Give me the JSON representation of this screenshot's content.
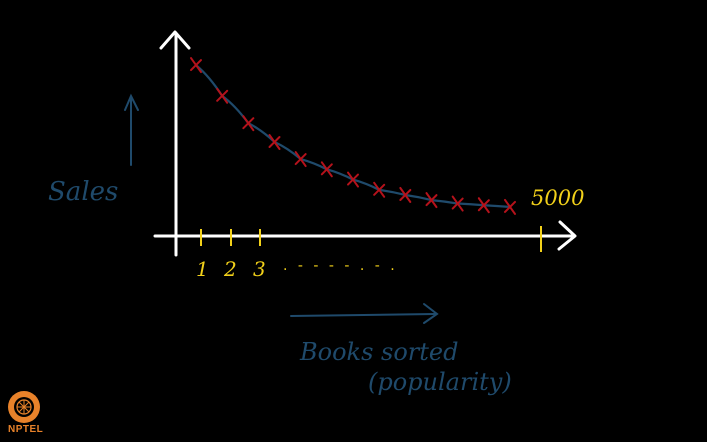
{
  "colors": {
    "background": "#000000",
    "axes": "#ffffff",
    "curve": "#1f4a6b",
    "markers": "#b5121b",
    "ticks": "#f2d11a",
    "annotation": "#1f4a6b",
    "logo": "#e8822a"
  },
  "labels": {
    "y_axis": "Sales",
    "x_axis_line1": "Books sorted",
    "x_axis_line2": "(popularity)",
    "x_end": "5000",
    "tick1": "1",
    "tick2": "2",
    "tick3": "3",
    "dots": ". - - - - . - .",
    "logo": "NPTEL"
  },
  "chart_data": {
    "type": "line",
    "description_free": true,
    "x": [
      1,
      2,
      3,
      4,
      5,
      6,
      7,
      8,
      9,
      10,
      11,
      12,
      13
    ],
    "y": [
      100,
      82,
      66,
      55,
      45,
      39,
      33,
      27,
      24,
      21,
      19,
      18,
      17
    ],
    "ylim": [
      0,
      110
    ]
  }
}
